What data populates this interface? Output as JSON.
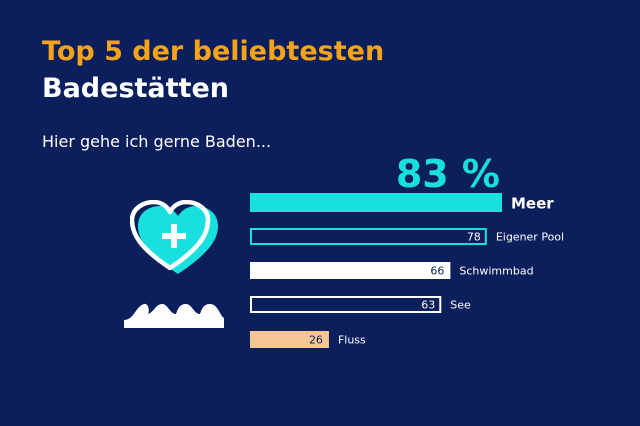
{
  "title_line1": "Top 5 der beliebtesten",
  "title_line2": "Badestätten",
  "subtitle": "Hier gehe ich gerne Baden...",
  "colors": {
    "background": "#0b1f5c",
    "title_accent": "#f5a31a",
    "cyan": "#19e0e0",
    "white": "#ffffff",
    "peach": "#f5c594"
  },
  "icons": [
    "heart-plus-icon",
    "waves-icon"
  ],
  "chart_data": {
    "type": "bar",
    "orientation": "horizontal",
    "categories": [
      "Meer",
      "Eigener Pool",
      "Schwimmbad",
      "See",
      "Fluss"
    ],
    "values": [
      83,
      78,
      66,
      63,
      26
    ],
    "value_labels": [
      "83 %",
      "78",
      "66",
      "63",
      "26"
    ],
    "bar_styles": [
      "cyan-filled",
      "cyan-outline",
      "white-filled",
      "white-outline",
      "peach-filled"
    ],
    "xlim": [
      0,
      83
    ],
    "unit": "%"
  }
}
